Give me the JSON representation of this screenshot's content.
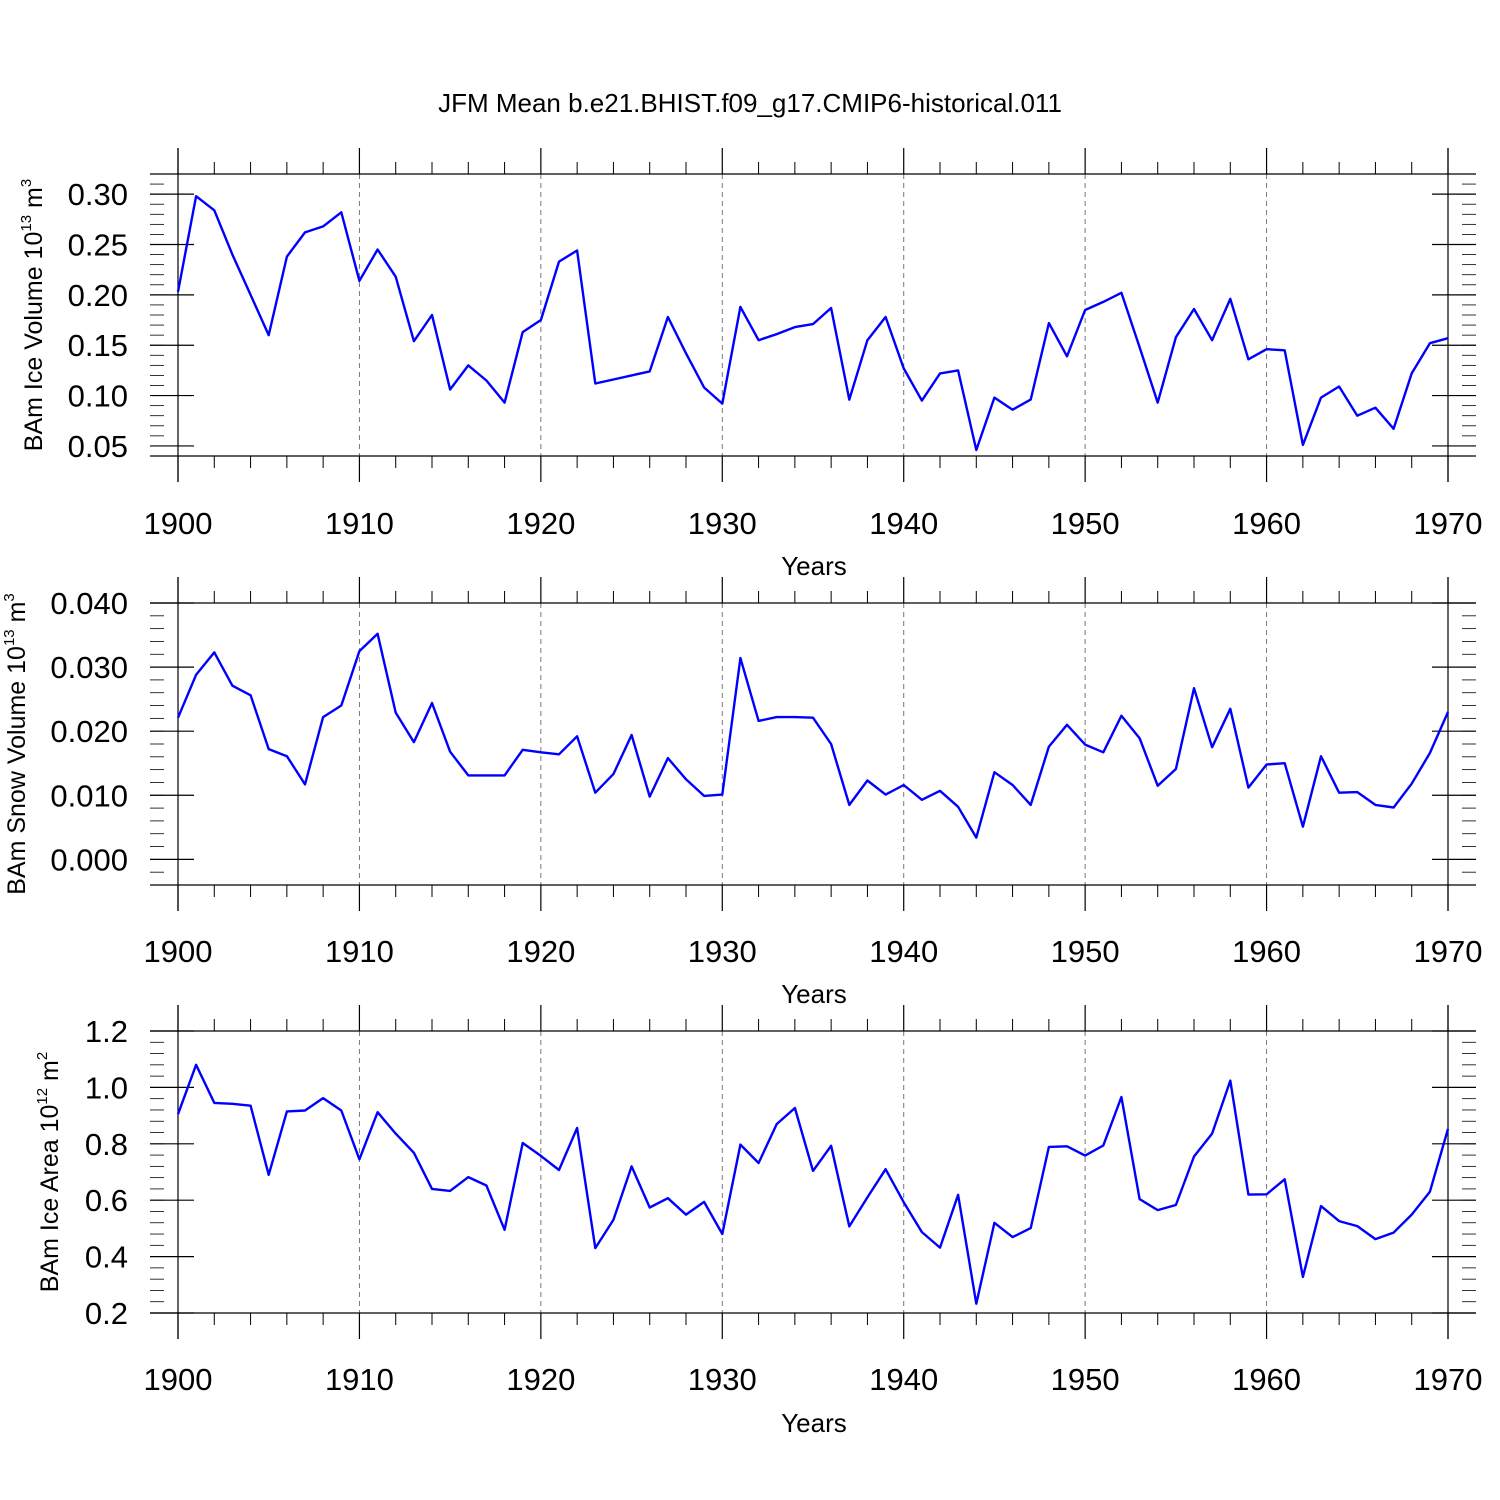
{
  "title": "JFM Mean b.e21.BHIST.f09_g17.CMIP6-historical.011",
  "chart_data": [
    {
      "type": "line",
      "ylabel": {
        "base": "BAm Ice Volume 10",
        "exponent": "13",
        "unit": " m",
        "unit_exponent": "3"
      },
      "xlabel": "Years",
      "xlim": [
        1900,
        1970
      ],
      "ylim": [
        0.04,
        0.32
      ],
      "yticks": [
        "0.05",
        "0.10",
        "0.15",
        "0.20",
        "0.25",
        "0.30"
      ],
      "xticks": [
        "1900",
        "1910",
        "1920",
        "1930",
        "1940",
        "1950",
        "1960",
        "1970"
      ],
      "grid_x": true,
      "line_color": "#0000ff",
      "x": [
        1900,
        1901,
        1902,
        1903,
        1904,
        1905,
        1906,
        1907,
        1908,
        1909,
        1910,
        1911,
        1912,
        1913,
        1914,
        1915,
        1916,
        1917,
        1918,
        1919,
        1920,
        1921,
        1922,
        1923,
        1924,
        1925,
        1926,
        1927,
        1928,
        1929,
        1930,
        1931,
        1932,
        1933,
        1934,
        1935,
        1936,
        1937,
        1938,
        1939,
        1940,
        1941,
        1942,
        1943,
        1944,
        1945,
        1946,
        1947,
        1948,
        1949,
        1950,
        1951,
        1952,
        1953,
        1954,
        1955,
        1956,
        1957,
        1958,
        1959,
        1960,
        1961,
        1962,
        1963,
        1964,
        1965,
        1966,
        1967,
        1968,
        1969,
        1970
      ],
      "values": [
        0.203,
        0.298,
        0.284,
        0.24,
        0.2,
        0.16,
        0.238,
        0.262,
        0.268,
        0.282,
        0.214,
        0.245,
        0.218,
        0.154,
        0.18,
        0.106,
        0.13,
        0.115,
        0.093,
        0.163,
        0.175,
        0.233,
        0.244,
        0.112,
        0.116,
        0.12,
        0.124,
        0.178,
        0.142,
        0.108,
        0.092,
        0.188,
        0.155,
        0.161,
        0.168,
        0.171,
        0.187,
        0.096,
        0.155,
        0.178,
        0.127,
        0.095,
        0.122,
        0.125,
        0.046,
        0.098,
        0.086,
        0.096,
        0.172,
        0.139,
        0.185,
        0.193,
        0.202,
        0.148,
        0.093,
        0.158,
        0.186,
        0.155,
        0.196,
        0.136,
        0.146,
        0.145,
        0.051,
        0.098,
        0.109,
        0.08,
        0.088,
        0.067,
        0.122,
        0.152,
        0.157
      ]
    },
    {
      "type": "line",
      "ylabel": {
        "base": "BAm Snow Volume 10",
        "exponent": "13",
        "unit": " m",
        "unit_exponent": "3"
      },
      "xlabel": "Years",
      "xlim": [
        1900,
        1970
      ],
      "ylim": [
        -0.004,
        0.04
      ],
      "yticks": [
        "0.000",
        "0.010",
        "0.020",
        "0.030",
        "0.040"
      ],
      "xticks": [
        "1900",
        "1910",
        "1920",
        "1930",
        "1940",
        "1950",
        "1960",
        "1970"
      ],
      "grid_x": true,
      "line_color": "#0000ff",
      "x": [
        1900,
        1901,
        1902,
        1903,
        1904,
        1905,
        1906,
        1907,
        1908,
        1909,
        1910,
        1911,
        1912,
        1913,
        1914,
        1915,
        1916,
        1917,
        1918,
        1919,
        1920,
        1921,
        1922,
        1923,
        1924,
        1925,
        1926,
        1927,
        1928,
        1929,
        1930,
        1931,
        1932,
        1933,
        1934,
        1935,
        1936,
        1937,
        1938,
        1939,
        1940,
        1941,
        1942,
        1943,
        1944,
        1945,
        1946,
        1947,
        1948,
        1949,
        1950,
        1951,
        1952,
        1953,
        1954,
        1955,
        1956,
        1957,
        1958,
        1959,
        1960,
        1961,
        1962,
        1963,
        1964,
        1965,
        1966,
        1967,
        1968,
        1969,
        1970
      ],
      "values": [
        0.0221,
        0.0288,
        0.0323,
        0.0271,
        0.0256,
        0.0172,
        0.0161,
        0.0117,
        0.0222,
        0.024,
        0.0325,
        0.0352,
        0.0229,
        0.0183,
        0.0244,
        0.0168,
        0.0131,
        0.0131,
        0.0131,
        0.0171,
        0.0167,
        0.0164,
        0.0192,
        0.0104,
        0.0133,
        0.0194,
        0.0098,
        0.0158,
        0.0125,
        0.0099,
        0.0101,
        0.0314,
        0.0216,
        0.0222,
        0.0222,
        0.0221,
        0.018,
        0.0085,
        0.0123,
        0.0101,
        0.0116,
        0.0093,
        0.0107,
        0.0082,
        0.0034,
        0.0136,
        0.0116,
        0.0085,
        0.0176,
        0.021,
        0.0179,
        0.0167,
        0.0224,
        0.0189,
        0.0115,
        0.0141,
        0.0267,
        0.0175,
        0.0235,
        0.0112,
        0.0148,
        0.015,
        0.0051,
        0.0161,
        0.0104,
        0.0105,
        0.0085,
        0.0081,
        0.0118,
        0.0166,
        0.023
      ]
    },
    {
      "type": "line",
      "ylabel": {
        "base": "BAm Ice Area 10",
        "exponent": "12",
        "unit": " m",
        "unit_exponent": "2"
      },
      "xlabel": "Years",
      "xlim": [
        1900,
        1970
      ],
      "ylim": [
        0.2,
        1.2
      ],
      "yticks": [
        "0.2",
        "0.4",
        "0.6",
        "0.8",
        "1.0",
        "1.2"
      ],
      "xticks": [
        "1900",
        "1910",
        "1920",
        "1930",
        "1940",
        "1950",
        "1960",
        "1970"
      ],
      "grid_x": true,
      "line_color": "#0000ff",
      "x": [
        1900,
        1901,
        1902,
        1903,
        1904,
        1905,
        1906,
        1907,
        1908,
        1909,
        1910,
        1911,
        1912,
        1913,
        1914,
        1915,
        1916,
        1917,
        1918,
        1919,
        1920,
        1921,
        1922,
        1923,
        1924,
        1925,
        1926,
        1927,
        1928,
        1929,
        1930,
        1931,
        1932,
        1933,
        1934,
        1935,
        1936,
        1937,
        1938,
        1939,
        1940,
        1941,
        1942,
        1943,
        1944,
        1945,
        1946,
        1947,
        1948,
        1949,
        1950,
        1951,
        1952,
        1953,
        1954,
        1955,
        1956,
        1957,
        1958,
        1959,
        1960,
        1961,
        1962,
        1963,
        1964,
        1965,
        1966,
        1967,
        1968,
        1969,
        1970
      ],
      "values": [
        0.905,
        1.08,
        0.945,
        0.942,
        0.935,
        0.69,
        0.915,
        0.918,
        0.962,
        0.918,
        0.745,
        0.912,
        0.836,
        0.768,
        0.64,
        0.633,
        0.682,
        0.652,
        0.495,
        0.803,
        0.757,
        0.707,
        0.856,
        0.43,
        0.53,
        0.72,
        0.574,
        0.607,
        0.549,
        0.594,
        0.48,
        0.797,
        0.732,
        0.87,
        0.927,
        0.704,
        0.793,
        0.507,
        0.61,
        0.71,
        0.593,
        0.487,
        0.432,
        0.619,
        0.233,
        0.52,
        0.469,
        0.501,
        0.789,
        0.791,
        0.758,
        0.794,
        0.966,
        0.604,
        0.565,
        0.583,
        0.755,
        0.836,
        1.024,
        0.62,
        0.621,
        0.674,
        0.328,
        0.579,
        0.526,
        0.508,
        0.462,
        0.485,
        0.549,
        0.63,
        0.853
      ]
    }
  ]
}
